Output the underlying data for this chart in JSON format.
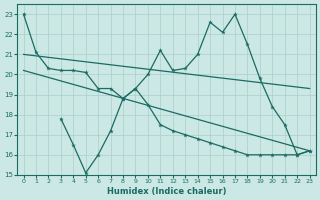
{
  "xlabel": "Humidex (Indice chaleur)",
  "xlim": [
    -0.5,
    23.5
  ],
  "ylim": [
    15,
    23.5
  ],
  "yticks": [
    15,
    16,
    17,
    18,
    19,
    20,
    21,
    22,
    23
  ],
  "xticks": [
    0,
    1,
    2,
    3,
    4,
    5,
    6,
    7,
    8,
    9,
    10,
    11,
    12,
    13,
    14,
    15,
    16,
    17,
    18,
    19,
    20,
    21,
    22,
    23
  ],
  "bg_color": "#cce8e4",
  "line_color": "#1a6b63",
  "grid_color": "#aacfcb",
  "line1_x": [
    0,
    1,
    2,
    3,
    4,
    5,
    6,
    7,
    8,
    9,
    10,
    11,
    12,
    13,
    14,
    15,
    16,
    17,
    18,
    19,
    20,
    21,
    22,
    23
  ],
  "line1_y": [
    23.0,
    21.1,
    20.3,
    20.2,
    20.2,
    20.1,
    19.3,
    19.3,
    18.8,
    19.3,
    20.0,
    21.2,
    20.2,
    20.3,
    21.0,
    22.6,
    22.1,
    23.0,
    21.5,
    19.8,
    18.4,
    17.5,
    16.0,
    16.2
  ],
  "line2_x": [
    0,
    23
  ],
  "line2_y": [
    21.0,
    19.3
  ],
  "line3_x": [
    0,
    23
  ],
  "line3_y": [
    20.2,
    16.2
  ],
  "line4_x": [
    3,
    4,
    5,
    6,
    7,
    8,
    9,
    10,
    11,
    12,
    13,
    14,
    15,
    16,
    17,
    18,
    19,
    20,
    21,
    22,
    23
  ],
  "line4_y": [
    17.8,
    16.5,
    15.1,
    16.0,
    17.2,
    18.8,
    19.3,
    18.5,
    17.5,
    17.2,
    17.0,
    16.8,
    16.6,
    16.4,
    16.2,
    16.0,
    16.0,
    16.0,
    16.0,
    16.0,
    16.2
  ]
}
